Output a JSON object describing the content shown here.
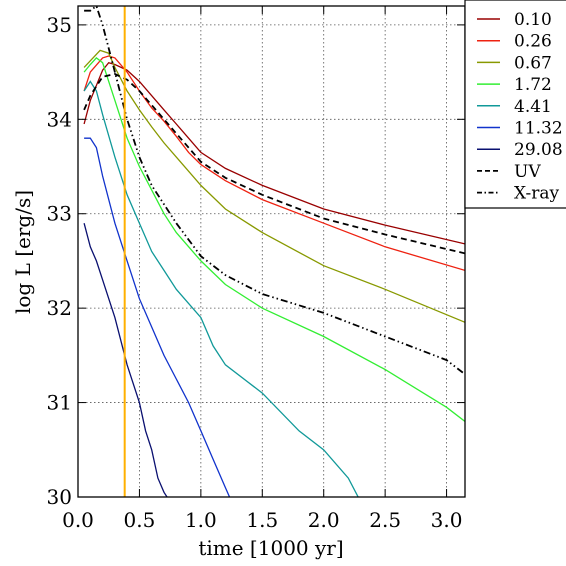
{
  "chart_data": {
    "type": "line",
    "xlabel": "time [1000 yr]",
    "ylabel": "log L [erg/s]",
    "xlim": [
      0.0,
      3.15
    ],
    "ylim": [
      30.0,
      35.2
    ],
    "x_ticks": [
      0.0,
      0.5,
      1.0,
      1.5,
      2.0,
      2.5,
      3.0
    ],
    "x_tick_labels": [
      "0.0",
      "0.5",
      "1.0",
      "1.5",
      "2.0",
      "2.5",
      "3.0"
    ],
    "y_ticks": [
      30,
      31,
      32,
      33,
      34,
      35
    ],
    "y_tick_labels": [
      "30",
      "31",
      "32",
      "33",
      "34",
      "35"
    ],
    "grid": true,
    "legend_position": "top-right",
    "vertical_marker": {
      "x": 0.38,
      "color": "#ffb000"
    },
    "series": [
      {
        "name": "0.10",
        "color": "#990000",
        "dash": "solid",
        "points": [
          [
            0.05,
            33.95
          ],
          [
            0.1,
            34.2
          ],
          [
            0.2,
            34.52
          ],
          [
            0.25,
            34.6
          ],
          [
            0.3,
            34.58
          ],
          [
            0.4,
            34.52
          ],
          [
            0.5,
            34.4
          ],
          [
            0.6,
            34.25
          ],
          [
            0.7,
            34.1
          ],
          [
            0.8,
            33.95
          ],
          [
            0.9,
            33.8
          ],
          [
            1.0,
            33.65
          ],
          [
            1.2,
            33.48
          ],
          [
            1.5,
            33.3
          ],
          [
            2.0,
            33.05
          ],
          [
            2.5,
            32.88
          ],
          [
            3.15,
            32.68
          ]
        ]
      },
      {
        "name": "0.26",
        "color": "#ee2211",
        "dash": "solid",
        "points": [
          [
            0.05,
            34.3
          ],
          [
            0.1,
            34.5
          ],
          [
            0.2,
            34.65
          ],
          [
            0.25,
            34.67
          ],
          [
            0.3,
            34.65
          ],
          [
            0.4,
            34.5
          ],
          [
            0.5,
            34.3
          ],
          [
            0.6,
            34.12
          ],
          [
            0.7,
            33.98
          ],
          [
            0.8,
            33.82
          ],
          [
            0.9,
            33.65
          ],
          [
            1.0,
            33.52
          ],
          [
            1.2,
            33.35
          ],
          [
            1.5,
            33.15
          ],
          [
            2.0,
            32.9
          ],
          [
            2.5,
            32.65
          ],
          [
            3.15,
            32.4
          ]
        ]
      },
      {
        "name": "0.67",
        "color": "#889900",
        "dash": "solid",
        "points": [
          [
            0.05,
            34.55
          ],
          [
            0.1,
            34.62
          ],
          [
            0.18,
            34.73
          ],
          [
            0.25,
            34.7
          ],
          [
            0.3,
            34.55
          ],
          [
            0.4,
            34.3
          ],
          [
            0.5,
            34.1
          ],
          [
            0.6,
            33.92
          ],
          [
            0.7,
            33.75
          ],
          [
            0.8,
            33.6
          ],
          [
            1.0,
            33.3
          ],
          [
            1.2,
            33.05
          ],
          [
            1.5,
            32.8
          ],
          [
            2.0,
            32.45
          ],
          [
            2.5,
            32.2
          ],
          [
            3.15,
            31.85
          ]
        ]
      },
      {
        "name": "1.72",
        "color": "#33ee33",
        "dash": "solid",
        "points": [
          [
            0.05,
            34.5
          ],
          [
            0.1,
            34.58
          ],
          [
            0.15,
            34.65
          ],
          [
            0.2,
            34.6
          ],
          [
            0.3,
            34.2
          ],
          [
            0.4,
            33.8
          ],
          [
            0.5,
            33.5
          ],
          [
            0.6,
            33.25
          ],
          [
            0.7,
            33.0
          ],
          [
            0.8,
            32.8
          ],
          [
            1.0,
            32.5
          ],
          [
            1.2,
            32.25
          ],
          [
            1.5,
            32.0
          ],
          [
            2.0,
            31.7
          ],
          [
            2.5,
            31.35
          ],
          [
            3.0,
            30.95
          ],
          [
            3.15,
            30.8
          ]
        ]
      },
      {
        "name": "4.41",
        "color": "#119999",
        "dash": "solid",
        "points": [
          [
            0.05,
            34.3
          ],
          [
            0.1,
            34.4
          ],
          [
            0.15,
            34.3
          ],
          [
            0.2,
            34.05
          ],
          [
            0.3,
            33.6
          ],
          [
            0.4,
            33.2
          ],
          [
            0.5,
            32.9
          ],
          [
            0.6,
            32.6
          ],
          [
            0.7,
            32.4
          ],
          [
            0.8,
            32.2
          ],
          [
            1.0,
            31.9
          ],
          [
            1.1,
            31.6
          ],
          [
            1.2,
            31.4
          ],
          [
            1.5,
            31.1
          ],
          [
            1.8,
            30.7
          ],
          [
            2.0,
            30.5
          ],
          [
            2.2,
            30.2
          ],
          [
            2.3,
            29.95
          ]
        ]
      },
      {
        "name": "11.32",
        "color": "#1133cc",
        "dash": "solid",
        "points": [
          [
            0.05,
            33.8
          ],
          [
            0.1,
            33.8
          ],
          [
            0.15,
            33.7
          ],
          [
            0.2,
            33.4
          ],
          [
            0.3,
            32.9
          ],
          [
            0.4,
            32.5
          ],
          [
            0.5,
            32.1
          ],
          [
            0.6,
            31.8
          ],
          [
            0.7,
            31.5
          ],
          [
            0.8,
            31.25
          ],
          [
            0.9,
            31.0
          ],
          [
            1.0,
            30.7
          ],
          [
            1.1,
            30.4
          ],
          [
            1.2,
            30.1
          ],
          [
            1.25,
            29.95
          ]
        ]
      },
      {
        "name": "29.08",
        "color": "#0a1070",
        "dash": "solid",
        "points": [
          [
            0.05,
            32.9
          ],
          [
            0.1,
            32.65
          ],
          [
            0.15,
            32.5
          ],
          [
            0.2,
            32.3
          ],
          [
            0.3,
            31.9
          ],
          [
            0.4,
            31.4
          ],
          [
            0.5,
            31.0
          ],
          [
            0.55,
            30.7
          ],
          [
            0.6,
            30.5
          ],
          [
            0.65,
            30.2
          ],
          [
            0.7,
            30.05
          ],
          [
            0.75,
            29.95
          ]
        ]
      },
      {
        "name": "UV",
        "color": "#000000",
        "dash": "dashed",
        "points": [
          [
            0.05,
            34.1
          ],
          [
            0.1,
            34.25
          ],
          [
            0.2,
            34.45
          ],
          [
            0.3,
            34.48
          ],
          [
            0.4,
            34.42
          ],
          [
            0.5,
            34.3
          ],
          [
            0.6,
            34.15
          ],
          [
            0.7,
            34.0
          ],
          [
            0.8,
            33.85
          ],
          [
            0.9,
            33.7
          ],
          [
            1.0,
            33.55
          ],
          [
            1.2,
            33.38
          ],
          [
            1.5,
            33.2
          ],
          [
            2.0,
            32.95
          ],
          [
            2.5,
            32.78
          ],
          [
            3.15,
            32.58
          ]
        ]
      },
      {
        "name": "X-ray",
        "color": "#000000",
        "dash": "dashdot",
        "points": [
          [
            0.05,
            35.15
          ],
          [
            0.1,
            35.15
          ],
          [
            0.15,
            35.2
          ],
          [
            0.2,
            35.0
          ],
          [
            0.3,
            34.5
          ],
          [
            0.4,
            34.0
          ],
          [
            0.5,
            33.6
          ],
          [
            0.6,
            33.3
          ],
          [
            0.7,
            33.1
          ],
          [
            0.8,
            32.9
          ],
          [
            1.0,
            32.55
          ],
          [
            1.2,
            32.35
          ],
          [
            1.5,
            32.15
          ],
          [
            2.0,
            31.95
          ],
          [
            2.5,
            31.7
          ],
          [
            3.0,
            31.45
          ],
          [
            3.15,
            31.3
          ]
        ]
      }
    ]
  }
}
